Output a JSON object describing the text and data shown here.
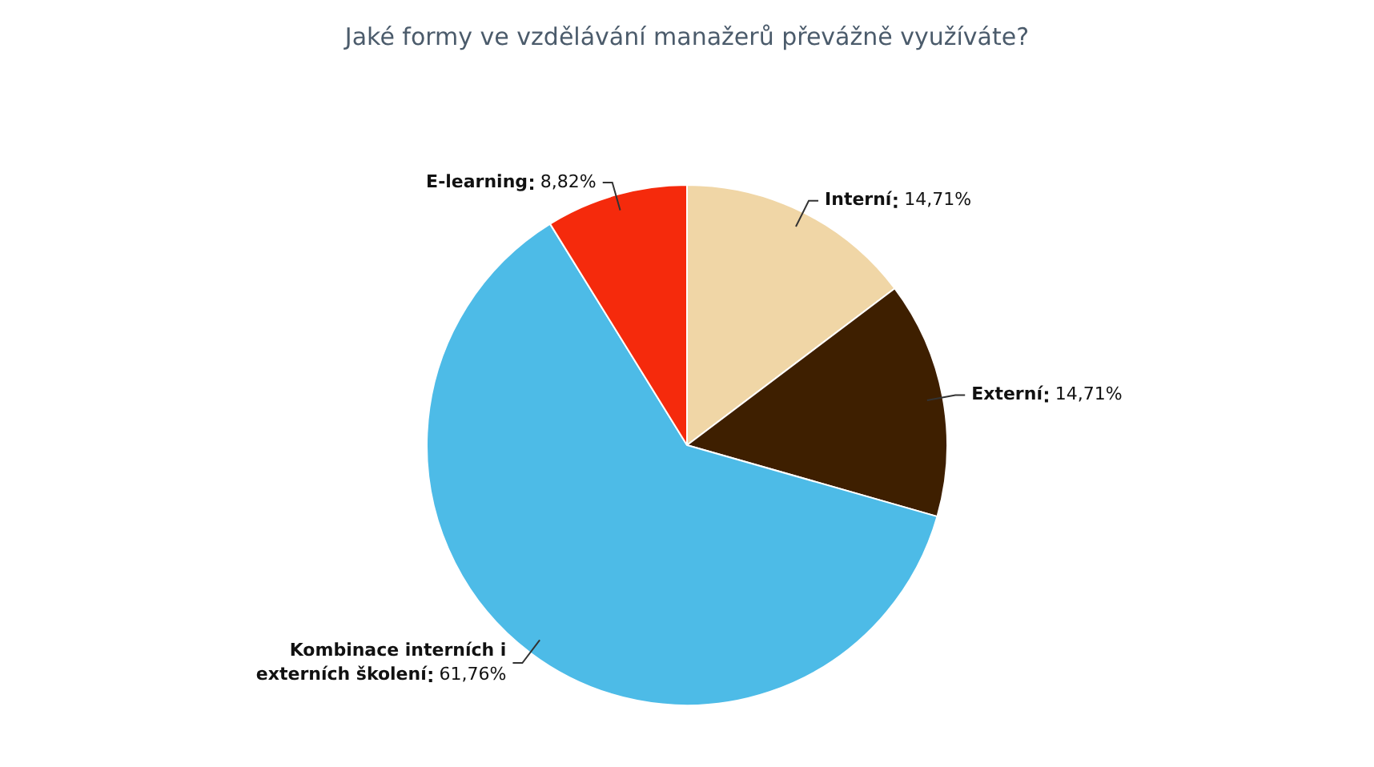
{
  "chart_data": {
    "type": "pie",
    "title": "Jaké formy ve vzdělávání manažerů převážně využíváte?",
    "categories": [
      "Interní",
      "Externí",
      "Kombinace interních i externích školení",
      "E-learning"
    ],
    "values": [
      14.71,
      14.71,
      61.76,
      8.82
    ],
    "colors": [
      "#f0d6a6",
      "#3e1f00",
      "#4dbbe7",
      "#f52a0c"
    ],
    "value_labels": [
      "14,71%",
      "14,71%",
      "61,76%",
      "8,82%"
    ],
    "legend": false
  }
}
